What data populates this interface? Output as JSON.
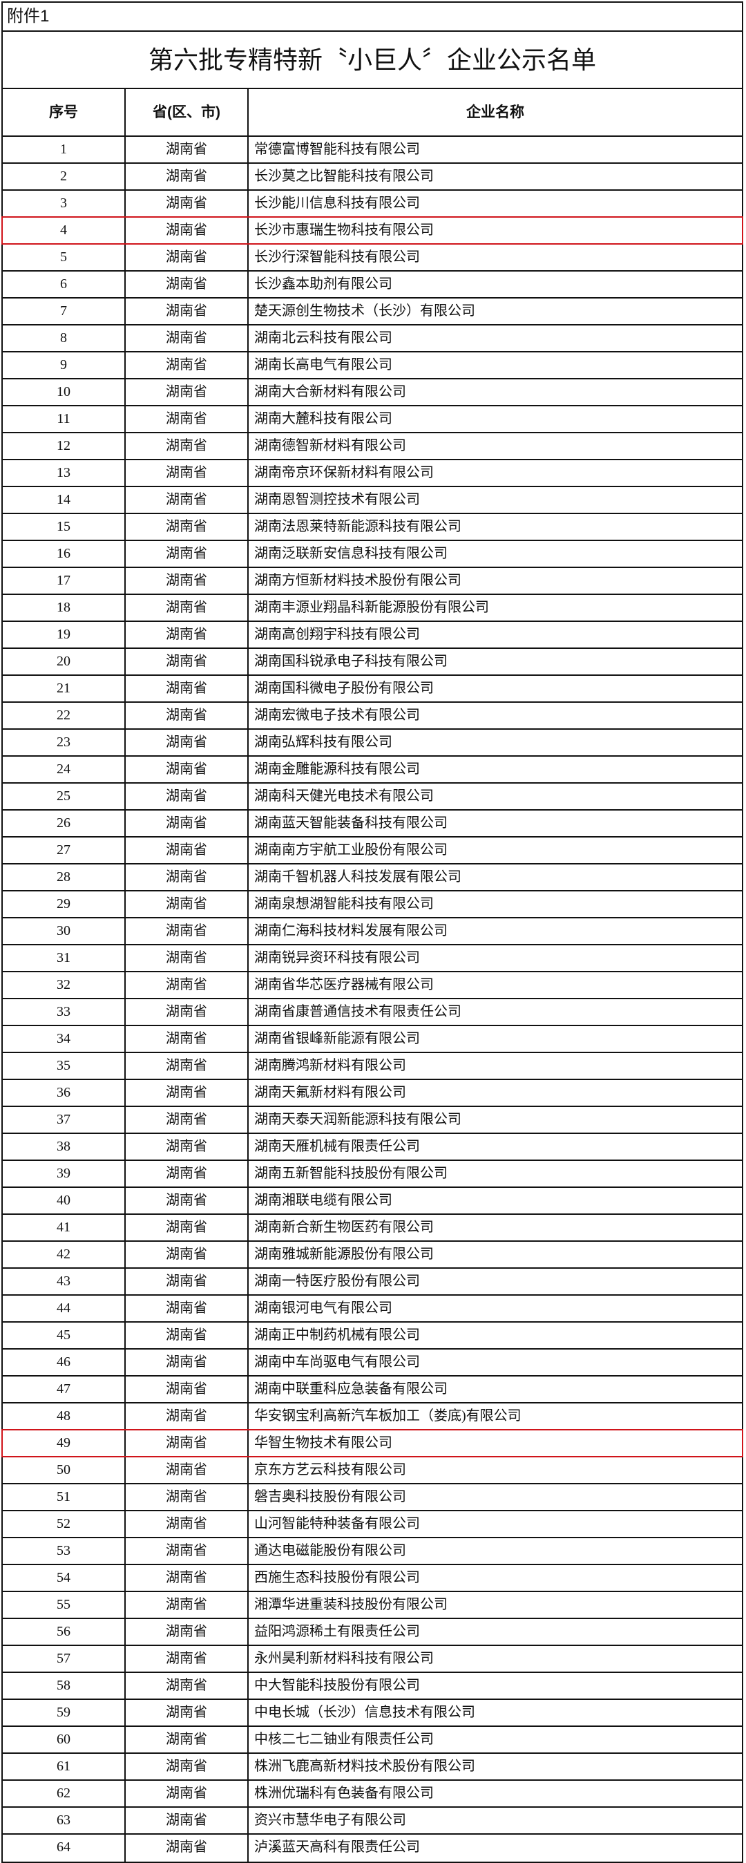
{
  "attachment_label": "附件1",
  "title": "第六批专精特新〝小巨人〞企业公示名单",
  "highlight_color": "#d0141a",
  "columns": [
    "序号",
    "省(区、市)",
    "企业名称"
  ],
  "rows": [
    {
      "no": "1",
      "province": "湖南省",
      "company": "常德富博智能科技有限公司"
    },
    {
      "no": "2",
      "province": "湖南省",
      "company": "长沙莫之比智能科技有限公司"
    },
    {
      "no": "3",
      "province": "湖南省",
      "company": "长沙能川信息科技有限公司"
    },
    {
      "no": "4",
      "province": "湖南省",
      "company": "长沙市惠瑞生物科技有限公司",
      "highlighted": true
    },
    {
      "no": "5",
      "province": "湖南省",
      "company": "长沙行深智能科技有限公司"
    },
    {
      "no": "6",
      "province": "湖南省",
      "company": "长沙鑫本助剂有限公司"
    },
    {
      "no": "7",
      "province": "湖南省",
      "company": "楚天源创生物技术（长沙）有限公司"
    },
    {
      "no": "8",
      "province": "湖南省",
      "company": "湖南北云科技有限公司"
    },
    {
      "no": "9",
      "province": "湖南省",
      "company": "湖南长高电气有限公司"
    },
    {
      "no": "10",
      "province": "湖南省",
      "company": "湖南大合新材料有限公司"
    },
    {
      "no": "11",
      "province": "湖南省",
      "company": "湖南大麓科技有限公司"
    },
    {
      "no": "12",
      "province": "湖南省",
      "company": "湖南德智新材料有限公司"
    },
    {
      "no": "13",
      "province": "湖南省",
      "company": "湖南帝京环保新材料有限公司"
    },
    {
      "no": "14",
      "province": "湖南省",
      "company": "湖南恩智测控技术有限公司"
    },
    {
      "no": "15",
      "province": "湖南省",
      "company": "湖南法恩莱特新能源科技有限公司"
    },
    {
      "no": "16",
      "province": "湖南省",
      "company": "湖南泛联新安信息科技有限公司"
    },
    {
      "no": "17",
      "province": "湖南省",
      "company": "湖南方恒新材料技术股份有限公司"
    },
    {
      "no": "18",
      "province": "湖南省",
      "company": "湖南丰源业翔晶科新能源股份有限公司"
    },
    {
      "no": "19",
      "province": "湖南省",
      "company": "湖南高创翔宇科技有限公司"
    },
    {
      "no": "20",
      "province": "湖南省",
      "company": "湖南国科锐承电子科技有限公司"
    },
    {
      "no": "21",
      "province": "湖南省",
      "company": "湖南国科微电子股份有限公司"
    },
    {
      "no": "22",
      "province": "湖南省",
      "company": "湖南宏微电子技术有限公司"
    },
    {
      "no": "23",
      "province": "湖南省",
      "company": "湖南弘辉科技有限公司"
    },
    {
      "no": "24",
      "province": "湖南省",
      "company": "湖南金雕能源科技有限公司"
    },
    {
      "no": "25",
      "province": "湖南省",
      "company": "湖南科天健光电技术有限公司"
    },
    {
      "no": "26",
      "province": "湖南省",
      "company": "湖南蓝天智能装备科技有限公司"
    },
    {
      "no": "27",
      "province": "湖南省",
      "company": "湖南南方宇航工业股份有限公司"
    },
    {
      "no": "28",
      "province": "湖南省",
      "company": "湖南千智机器人科技发展有限公司"
    },
    {
      "no": "29",
      "province": "湖南省",
      "company": "湖南泉想湖智能科技有限公司"
    },
    {
      "no": "30",
      "province": "湖南省",
      "company": "湖南仁海科技材料发展有限公司"
    },
    {
      "no": "31",
      "province": "湖南省",
      "company": "湖南锐异资环科技有限公司"
    },
    {
      "no": "32",
      "province": "湖南省",
      "company": "湖南省华芯医疗器械有限公司"
    },
    {
      "no": "33",
      "province": "湖南省",
      "company": "湖南省康普通信技术有限责任公司"
    },
    {
      "no": "34",
      "province": "湖南省",
      "company": "湖南省银峰新能源有限公司"
    },
    {
      "no": "35",
      "province": "湖南省",
      "company": "湖南腾鸿新材料有限公司"
    },
    {
      "no": "36",
      "province": "湖南省",
      "company": "湖南天氟新材料有限公司"
    },
    {
      "no": "37",
      "province": "湖南省",
      "company": "湖南天泰天润新能源科技有限公司"
    },
    {
      "no": "38",
      "province": "湖南省",
      "company": "湖南天雁机械有限责任公司"
    },
    {
      "no": "39",
      "province": "湖南省",
      "company": "湖南五新智能科技股份有限公司"
    },
    {
      "no": "40",
      "province": "湖南省",
      "company": "湖南湘联电缆有限公司"
    },
    {
      "no": "41",
      "province": "湖南省",
      "company": "湖南新合新生物医药有限公司"
    },
    {
      "no": "42",
      "province": "湖南省",
      "company": "湖南雅城新能源股份有限公司"
    },
    {
      "no": "43",
      "province": "湖南省",
      "company": "湖南一特医疗股份有限公司"
    },
    {
      "no": "44",
      "province": "湖南省",
      "company": "湖南银河电气有限公司"
    },
    {
      "no": "45",
      "province": "湖南省",
      "company": "湖南正中制药机械有限公司"
    },
    {
      "no": "46",
      "province": "湖南省",
      "company": "湖南中车尚驱电气有限公司"
    },
    {
      "no": "47",
      "province": "湖南省",
      "company": "湖南中联重科应急装备有限公司"
    },
    {
      "no": "48",
      "province": "湖南省",
      "company": "华安钢宝利高新汽车板加工（娄底)有限公司"
    },
    {
      "no": "49",
      "province": "湖南省",
      "company": "华智生物技术有限公司",
      "highlighted": true
    },
    {
      "no": "50",
      "province": "湖南省",
      "company": "京东方艺云科技有限公司"
    },
    {
      "no": "51",
      "province": "湖南省",
      "company": "磐吉奥科技股份有限公司"
    },
    {
      "no": "52",
      "province": "湖南省",
      "company": "山河智能特种装备有限公司"
    },
    {
      "no": "53",
      "province": "湖南省",
      "company": "通达电磁能股份有限公司"
    },
    {
      "no": "54",
      "province": "湖南省",
      "company": "西施生态科技股份有限公司"
    },
    {
      "no": "55",
      "province": "湖南省",
      "company": "湘潭华进重装科技股份有限公司"
    },
    {
      "no": "56",
      "province": "湖南省",
      "company": "益阳鸿源稀土有限责任公司"
    },
    {
      "no": "57",
      "province": "湖南省",
      "company": "永州昊利新材料科技有限公司"
    },
    {
      "no": "58",
      "province": "湖南省",
      "company": "中大智能科技股份有限公司"
    },
    {
      "no": "59",
      "province": "湖南省",
      "company": "中电长城（长沙）信息技术有限公司"
    },
    {
      "no": "60",
      "province": "湖南省",
      "company": "中核二七二铀业有限责任公司"
    },
    {
      "no": "61",
      "province": "湖南省",
      "company": "株洲飞鹿高新材料技术股份有限公司"
    },
    {
      "no": "62",
      "province": "湖南省",
      "company": "株洲优瑞科有色装备有限公司"
    },
    {
      "no": "63",
      "province": "湖南省",
      "company": "资兴市慧华电子有限公司"
    },
    {
      "no": "64",
      "province": "湖南省",
      "company": "泸溪蓝天高科有限责任公司"
    }
  ]
}
